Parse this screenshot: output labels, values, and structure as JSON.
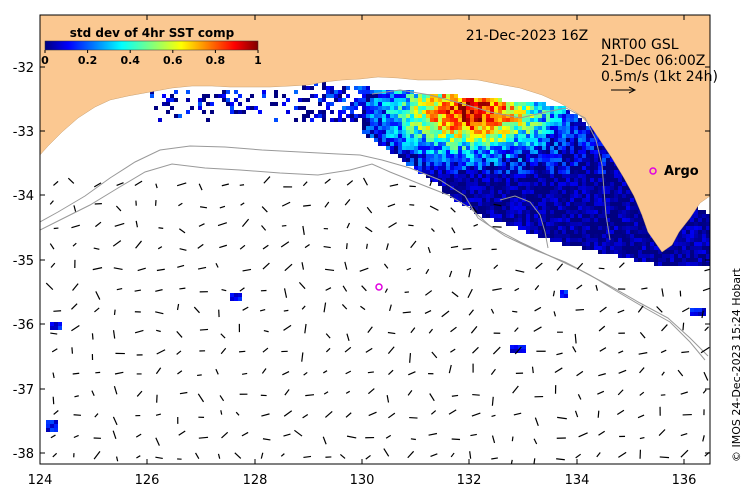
{
  "map": {
    "title_time": "21-Dec-2023 16Z",
    "info_lines": [
      "NRT00 GSL",
      "21-Dec 06:00Z",
      "0.5m/s (1kt 24h)"
    ],
    "credit": "© IMOS 24-Dec-2023 15:24 Hobart",
    "colorbar": {
      "title": "std dev of 4hr SST comp",
      "ticks": [
        "0",
        "0.2",
        "0.4",
        "0.6",
        "0.8",
        "1"
      ]
    },
    "x_ticks": [
      "124",
      "126",
      "128",
      "130",
      "132",
      "134",
      "136"
    ],
    "y_ticks": [
      "-32",
      "-33",
      "-34",
      "-35",
      "-36",
      "-37",
      "-38"
    ],
    "argo_label": "Argo",
    "colors": {
      "land": "#fbc891",
      "contour": "#999999",
      "argo": "#e000e0"
    }
  }
}
